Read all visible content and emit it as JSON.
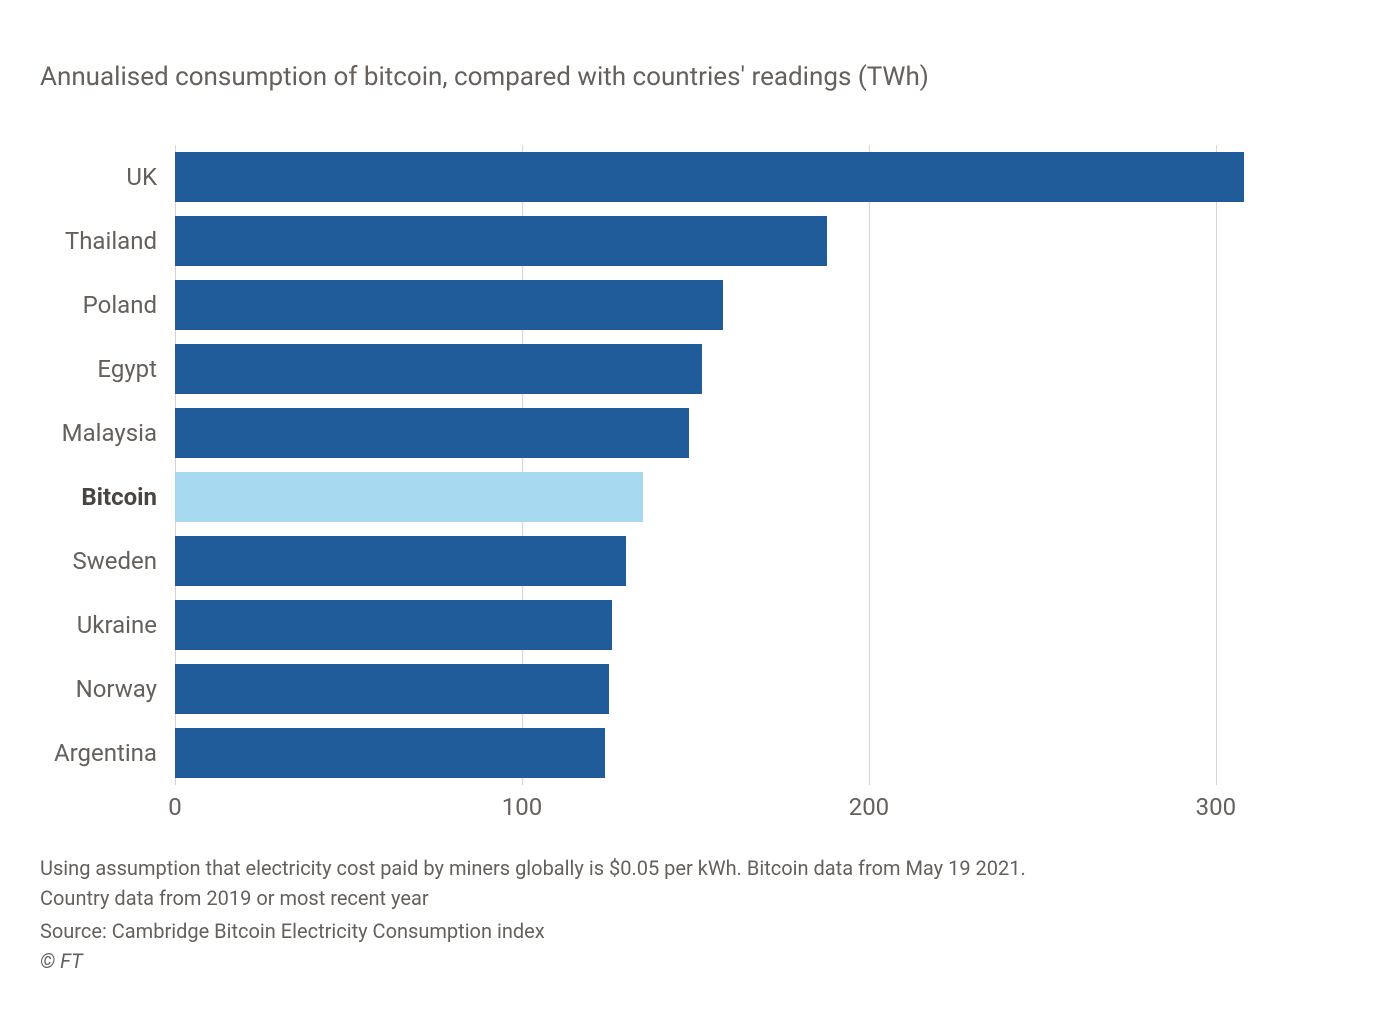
{
  "subtitle": "Annualised consumption of bitcoin, compared with countries' readings (TWh)",
  "chart": {
    "type": "bar-horizontal",
    "xlim": [
      0,
      330
    ],
    "xticks": [
      0,
      100,
      200,
      300
    ],
    "gridline_color": "#d9d4cf",
    "background_color": "#ffffff",
    "bar_gap_ratio": 0.22,
    "label_fontsize": 24,
    "tick_fontsize": 24,
    "default_bar_color": "#1f5c99",
    "highlight_bar_color": "#a6d8ef",
    "categories": [
      {
        "label": "UK",
        "value": 308,
        "highlight": false
      },
      {
        "label": "Thailand",
        "value": 188,
        "highlight": false
      },
      {
        "label": "Poland",
        "value": 158,
        "highlight": false
      },
      {
        "label": "Egypt",
        "value": 152,
        "highlight": false
      },
      {
        "label": "Malaysia",
        "value": 148,
        "highlight": false
      },
      {
        "label": "Bitcoin",
        "value": 135,
        "highlight": true
      },
      {
        "label": "Sweden",
        "value": 130,
        "highlight": false
      },
      {
        "label": "Ukraine",
        "value": 126,
        "highlight": false
      },
      {
        "label": "Norway",
        "value": 125,
        "highlight": false
      },
      {
        "label": "Argentina",
        "value": 124,
        "highlight": false
      }
    ]
  },
  "footnote_line1": "Using assumption that electricity cost paid by miners globally is $0.05 per kWh. Bitcoin data from May 19 2021.",
  "footnote_line2": "Country data from 2019 or most recent year",
  "source": "Source: Cambridge Bitcoin Electricity Consumption index",
  "copyright": "© FT"
}
